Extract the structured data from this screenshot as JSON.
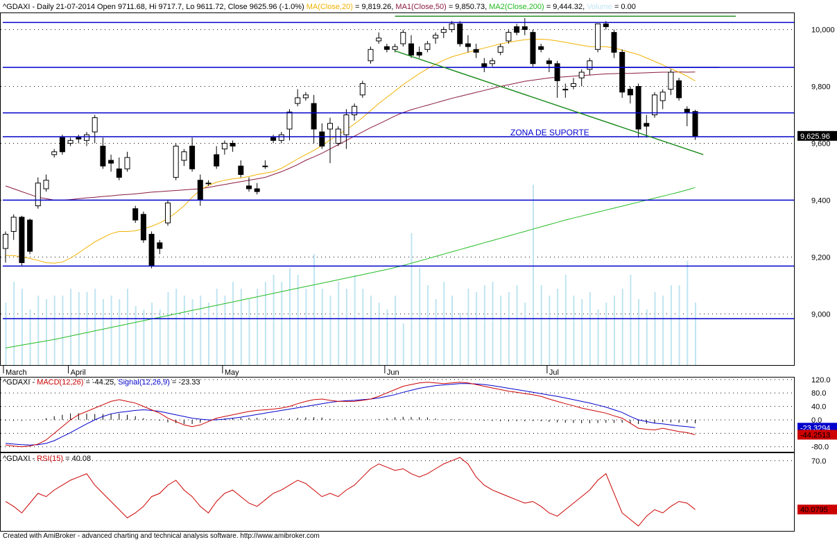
{
  "header": {
    "symbol": "^GDAXI",
    "period": "Daily",
    "date": "21-07-2014",
    "open_label": "Open",
    "open": "9711.68",
    "hi_label": "Hi",
    "hi": "9717.7",
    "lo_label": "Lo",
    "lo": "9611.72",
    "close_label": "Close",
    "close": "9625.96 (-1.0%)",
    "ma": "MA(Close,20) = 9,819.26",
    "ma1": "MA1(Close,50) = 9,850.73",
    "ma2": "MA2(Close,200) = 9,444.32",
    "volume": "Volume = 0.00"
  },
  "colors": {
    "up": "#ffffff",
    "down": "#000000",
    "frame": "#000000",
    "ma20": "#f2b200",
    "ma50": "#8a1a3f",
    "ma200": "#22bb22",
    "volume": "#bfe4f2",
    "hline": "#0000cc",
    "trend": "#1e8c1e",
    "macd": "#cc0000",
    "signal": "#0000cc",
    "rsi": "#cc0000"
  },
  "annotation": "ZONA DE SUPORTE",
  "footer": "Created with AmiBroker - advanced charting and technical analysis software. http://www.amibroker.com",
  "chart_data": [
    {
      "type": "candlestick",
      "ylim": [
        8820,
        10060
      ],
      "yticks": [
        "10,000",
        "9,800",
        "9,600",
        "9,400",
        "9,200",
        "9,000"
      ],
      "last_label": "9,625.96",
      "xlabels": [
        {
          "index": 0,
          "label": "March"
        },
        {
          "index": 8,
          "label": "April"
        },
        {
          "index": 27,
          "label": "May"
        },
        {
          "index": 47,
          "label": "Jun"
        },
        {
          "index": 67,
          "label": "Jul"
        }
      ],
      "ohlc": [
        [
          9230,
          9290,
          9180,
          9280
        ],
        [
          9290,
          9350,
          9260,
          9340
        ],
        [
          9340,
          9345,
          9170,
          9180
        ],
        [
          9330,
          9335,
          9210,
          9220
        ],
        [
          9380,
          9480,
          9370,
          9460
        ],
        [
          9440,
          9490,
          9430,
          9470
        ],
        [
          9560,
          9580,
          9550,
          9570
        ],
        [
          9620,
          9630,
          9560,
          9570
        ],
        [
          9600,
          9620,
          9590,
          9610
        ],
        [
          9620,
          9630,
          9600,
          9615
        ],
        [
          9610,
          9640,
          9590,
          9630
        ],
        [
          9640,
          9700,
          9600,
          9690
        ],
        [
          9590,
          9620,
          9510,
          9520
        ],
        [
          9540,
          9560,
          9500,
          9530
        ],
        [
          9510,
          9550,
          9470,
          9480
        ],
        [
          9510,
          9570,
          9500,
          9550
        ],
        [
          9370,
          9380,
          9320,
          9330
        ],
        [
          9350,
          9360,
          9250,
          9260
        ],
        [
          9280,
          9290,
          9160,
          9170
        ],
        [
          9250,
          9260,
          9210,
          9230
        ],
        [
          9320,
          9400,
          9310,
          9390
        ],
        [
          9480,
          9600,
          9470,
          9590
        ],
        [
          9540,
          9580,
          9520,
          9570
        ],
        [
          9590,
          9620,
          9500,
          9510
        ],
        [
          9470,
          9490,
          9380,
          9400
        ],
        [
          9460,
          9470,
          9450,
          9460
        ],
        [
          9560,
          9590,
          9510,
          9520
        ],
        [
          9580,
          9610,
          9560,
          9600
        ],
        [
          9600,
          9610,
          9570,
          9590
        ],
        [
          9520,
          9540,
          9480,
          9490
        ],
        [
          9450,
          9480,
          9430,
          9440
        ],
        [
          9440,
          9460,
          9420,
          9430
        ],
        [
          9520,
          9540,
          9510,
          9520
        ],
        [
          9620,
          9630,
          9600,
          9610
        ],
        [
          9610,
          9640,
          9600,
          9630
        ],
        [
          9650,
          9720,
          9610,
          9710
        ],
        [
          9740,
          9790,
          9730,
          9760
        ],
        [
          9760,
          9780,
          9750,
          9770
        ],
        [
          9740,
          9770,
          9600,
          9650
        ],
        [
          9640,
          9670,
          9580,
          9590
        ],
        [
          9650,
          9690,
          9530,
          9670
        ],
        [
          9600,
          9660,
          9590,
          9650
        ],
        [
          9630,
          9720,
          9580,
          9700
        ],
        [
          9700,
          9740,
          9680,
          9730
        ],
        [
          9770,
          9820,
          9760,
          9810
        ],
        [
          9890,
          9940,
          9880,
          9930
        ],
        [
          9960,
          9990,
          9950,
          9970
        ],
        [
          9940,
          9950,
          9920,
          9930
        ],
        [
          9930,
          9950,
          9920,
          9940
        ],
        [
          9950,
          10000,
          9940,
          9990
        ],
        [
          9950,
          9980,
          9900,
          9910
        ],
        [
          9920,
          9940,
          9900,
          9910
        ],
        [
          9930,
          9960,
          9920,
          9950
        ],
        [
          9970,
          9990,
          9950,
          9980
        ],
        [
          9990,
          10010,
          9970,
          10000
        ],
        [
          10000,
          10030,
          9990,
          10020
        ],
        [
          10020,
          10030,
          9940,
          9950
        ],
        [
          9950,
          9980,
          9920,
          9940
        ],
        [
          9930,
          9950,
          9900,
          9920
        ],
        [
          9880,
          9900,
          9850,
          9870
        ],
        [
          9880,
          9900,
          9870,
          9890
        ],
        [
          9920,
          9950,
          9910,
          9940
        ],
        [
          9960,
          10000,
          9950,
          9990
        ],
        [
          10010,
          10020,
          9980,
          9990
        ],
        [
          10010,
          10040,
          9980,
          10000
        ],
        [
          9990,
          10000,
          9870,
          9880
        ],
        [
          9940,
          9950,
          9920,
          9930
        ],
        [
          9890,
          9900,
          9850,
          9880
        ],
        [
          9880,
          9890,
          9760,
          9820
        ],
        [
          9790,
          9810,
          9760,
          9790
        ],
        [
          9800,
          9830,
          9790,
          9810
        ],
        [
          9830,
          9860,
          9800,
          9850
        ],
        [
          9860,
          9900,
          9840,
          9890
        ],
        [
          9930,
          10020,
          9920,
          10020
        ],
        [
          10020,
          10030,
          10000,
          10010
        ],
        [
          9990,
          10000,
          9900,
          9920
        ],
        [
          9920,
          9930,
          9760,
          9780
        ],
        [
          9790,
          9800,
          9740,
          9770
        ],
        [
          9800,
          9810,
          9620,
          9650
        ],
        [
          9670,
          9700,
          9620,
          9660
        ],
        [
          9700,
          9780,
          9690,
          9770
        ],
        [
          9750,
          9790,
          9720,
          9780
        ],
        [
          9790,
          9860,
          9770,
          9850
        ],
        [
          9820,
          9830,
          9750,
          9760
        ],
        [
          9720,
          9730,
          9660,
          9710
        ],
        [
          9711.68,
          9717.7,
          9611.72,
          9625.96
        ]
      ],
      "volume": [
        90,
        120,
        110,
        80,
        100,
        95,
        100,
        100,
        110,
        105,
        105,
        110,
        95,
        100,
        95,
        110,
        85,
        80,
        90,
        80,
        105,
        110,
        100,
        95,
        100,
        90,
        110,
        100,
        120,
        110,
        95,
        110,
        120,
        130,
        120,
        140,
        130,
        110,
        160,
        110,
        100,
        120,
        110,
        130,
        110,
        100,
        90,
        80,
        100,
        60,
        190,
        140,
        115,
        95,
        120,
        100,
        75,
        110,
        105,
        115,
        120,
        100,
        105,
        115,
        90,
        260,
        115,
        100,
        110,
        130,
        100,
        95,
        105,
        80,
        90,
        100,
        110,
        130,
        95,
        80,
        105,
        100,
        115,
        115,
        150,
        90
      ],
      "ma20": [
        9205,
        9205,
        9200,
        9195,
        9188,
        9180,
        9178,
        9182,
        9196,
        9214,
        9234,
        9253,
        9268,
        9282,
        9290,
        9290,
        9292,
        9300,
        9308,
        9320,
        9335,
        9356,
        9380,
        9410,
        9435,
        9452,
        9463,
        9470,
        9475,
        9478,
        9483,
        9490,
        9495,
        9500,
        9512,
        9528,
        9545,
        9560,
        9575,
        9592,
        9612,
        9630,
        9648,
        9668,
        9690,
        9715,
        9740,
        9762,
        9784,
        9806,
        9826,
        9845,
        9862,
        9878,
        9892,
        9904,
        9912,
        9920,
        9928,
        9935,
        9942,
        9950,
        9955,
        9960,
        9964,
        9966,
        9966,
        9964,
        9960,
        9955,
        9950,
        9945,
        9940,
        9940,
        9940,
        9935,
        9928,
        9920,
        9912,
        9900,
        9888,
        9876,
        9862,
        9850,
        9836,
        9819.26
      ],
      "ma50": [
        9450,
        9440,
        9430,
        9420,
        9410,
        9405,
        9400,
        9400,
        9402,
        9405,
        9408,
        9410,
        9413,
        9415,
        9418,
        9420,
        9422,
        9425,
        9428,
        9430,
        9432,
        9434,
        9436,
        9438,
        9440,
        9445,
        9450,
        9455,
        9460,
        9465,
        9470,
        9475,
        9480,
        9490,
        9500,
        9512,
        9525,
        9540,
        9552,
        9565,
        9580,
        9595,
        9610,
        9625,
        9640,
        9655,
        9668,
        9682,
        9696,
        9708,
        9718,
        9726,
        9734,
        9742,
        9750,
        9758,
        9765,
        9772,
        9779,
        9786,
        9793,
        9800,
        9806,
        9812,
        9818,
        9822,
        9826,
        9830,
        9832,
        9834,
        9836,
        9838,
        9840,
        9842,
        9844,
        9845,
        9846,
        9846,
        9847,
        9848,
        9849,
        9850,
        9850,
        9851,
        9850,
        9850.73
      ],
      "ma200": [
        8880,
        8885,
        8890,
        8895,
        8900,
        8905,
        8910,
        8916,
        8922,
        8928,
        8934,
        8940,
        8946,
        8952,
        8958,
        8964,
        8970,
        8976,
        8982,
        8988,
        8994,
        9000,
        9006,
        9012,
        9018,
        9024,
        9030,
        9036,
        9042,
        9048,
        9054,
        9060,
        9066,
        9072,
        9078,
        9084,
        9090,
        9096,
        9102,
        9108,
        9114,
        9120,
        9126,
        9132,
        9138,
        9144,
        9150,
        9156,
        9163,
        9170,
        9178,
        9186,
        9194,
        9202,
        9210,
        9218,
        9226,
        9234,
        9242,
        9250,
        9258,
        9266,
        9274,
        9282,
        9290,
        9298,
        9306,
        9314,
        9322,
        9330,
        9337,
        9344,
        9351,
        9358,
        9365,
        9372,
        9379,
        9386,
        9393,
        9400,
        9407,
        9414,
        9421,
        9428,
        9436,
        9444.32
      ]
    },
    {
      "type": "macd",
      "title": "MACD(12,26) = -44.25, Signal(12,26,9) = -23.33",
      "ylim": [
        -95,
        128
      ],
      "yticks": [
        "120.0",
        "80.0",
        "40.0",
        "0.0",
        "-40.0",
        "-80.0"
      ],
      "last_macd_label": "-44.2513",
      "last_signal_label": "-23.3294",
      "macd": [
        -75,
        -78,
        -80,
        -78,
        -72,
        -60,
        -40,
        -20,
        0,
        15,
        25,
        35,
        45,
        55,
        60,
        55,
        50,
        40,
        30,
        20,
        5,
        -5,
        -15,
        -20,
        -15,
        -5,
        5,
        10,
        15,
        20,
        25,
        28,
        30,
        32,
        35,
        40,
        48,
        55,
        60,
        62,
        58,
        55,
        55,
        55,
        58,
        62,
        70,
        80,
        90,
        100,
        105,
        110,
        112,
        110,
        108,
        110,
        112,
        110,
        105,
        100,
        95,
        90,
        85,
        82,
        78,
        75,
        70,
        62,
        55,
        48,
        42,
        35,
        30,
        25,
        20,
        12,
        5,
        -10,
        -25,
        -28,
        -30,
        -25,
        -30,
        -35,
        -38,
        -44.25
      ],
      "signal": [
        -70,
        -72,
        -74,
        -75,
        -74,
        -70,
        -62,
        -50,
        -38,
        -25,
        -12,
        0,
        10,
        18,
        22,
        25,
        28,
        30,
        28,
        25,
        20,
        15,
        10,
        5,
        2,
        0,
        0,
        2,
        5,
        8,
        12,
        16,
        20,
        24,
        28,
        32,
        36,
        40,
        44,
        48,
        52,
        55,
        57,
        58,
        60,
        62,
        65,
        70,
        75,
        82,
        88,
        94,
        98,
        102,
        104,
        106,
        108,
        108,
        107,
        105,
        102,
        98,
        94,
        90,
        86,
        82,
        78,
        74,
        70,
        65,
        60,
        55,
        50,
        44,
        38,
        30,
        22,
        10,
        0,
        -5,
        -10,
        -12,
        -15,
        -18,
        -20,
        -23.33
      ]
    },
    {
      "type": "line",
      "title": "RSI(15) = 40.08",
      "ylim": [
        27,
        75
      ],
      "yticks": [
        "70.0"
      ],
      "last_label": "40.0795",
      "rsi": [
        45,
        42,
        38,
        44,
        50,
        48,
        52,
        55,
        58,
        60,
        62,
        55,
        50,
        45,
        40,
        35,
        38,
        42,
        48,
        50,
        55,
        58,
        52,
        48,
        42,
        38,
        45,
        50,
        52,
        48,
        44,
        42,
        46,
        50,
        52,
        55,
        58,
        56,
        52,
        48,
        50,
        48,
        52,
        55,
        60,
        65,
        68,
        66,
        64,
        65,
        62,
        60,
        62,
        65,
        68,
        70,
        72,
        68,
        60,
        55,
        52,
        50,
        48,
        46,
        44,
        45,
        42,
        38,
        36,
        40,
        44,
        48,
        52,
        58,
        62,
        50,
        38,
        34,
        30,
        36,
        40,
        38,
        42,
        45,
        44,
        40.08
      ]
    }
  ],
  "hlines": [
    10025,
    9867,
    9707,
    9623,
    9400,
    9168,
    8983
  ],
  "trendlines": [
    {
      "from": [
        48,
        10047
      ],
      "to": [
        90,
        10047
      ]
    },
    {
      "from": [
        60,
        9867
      ],
      "to": [
        88,
        9867
      ]
    },
    {
      "from": [
        48,
        9925
      ],
      "to": [
        86,
        9560
      ]
    }
  ]
}
